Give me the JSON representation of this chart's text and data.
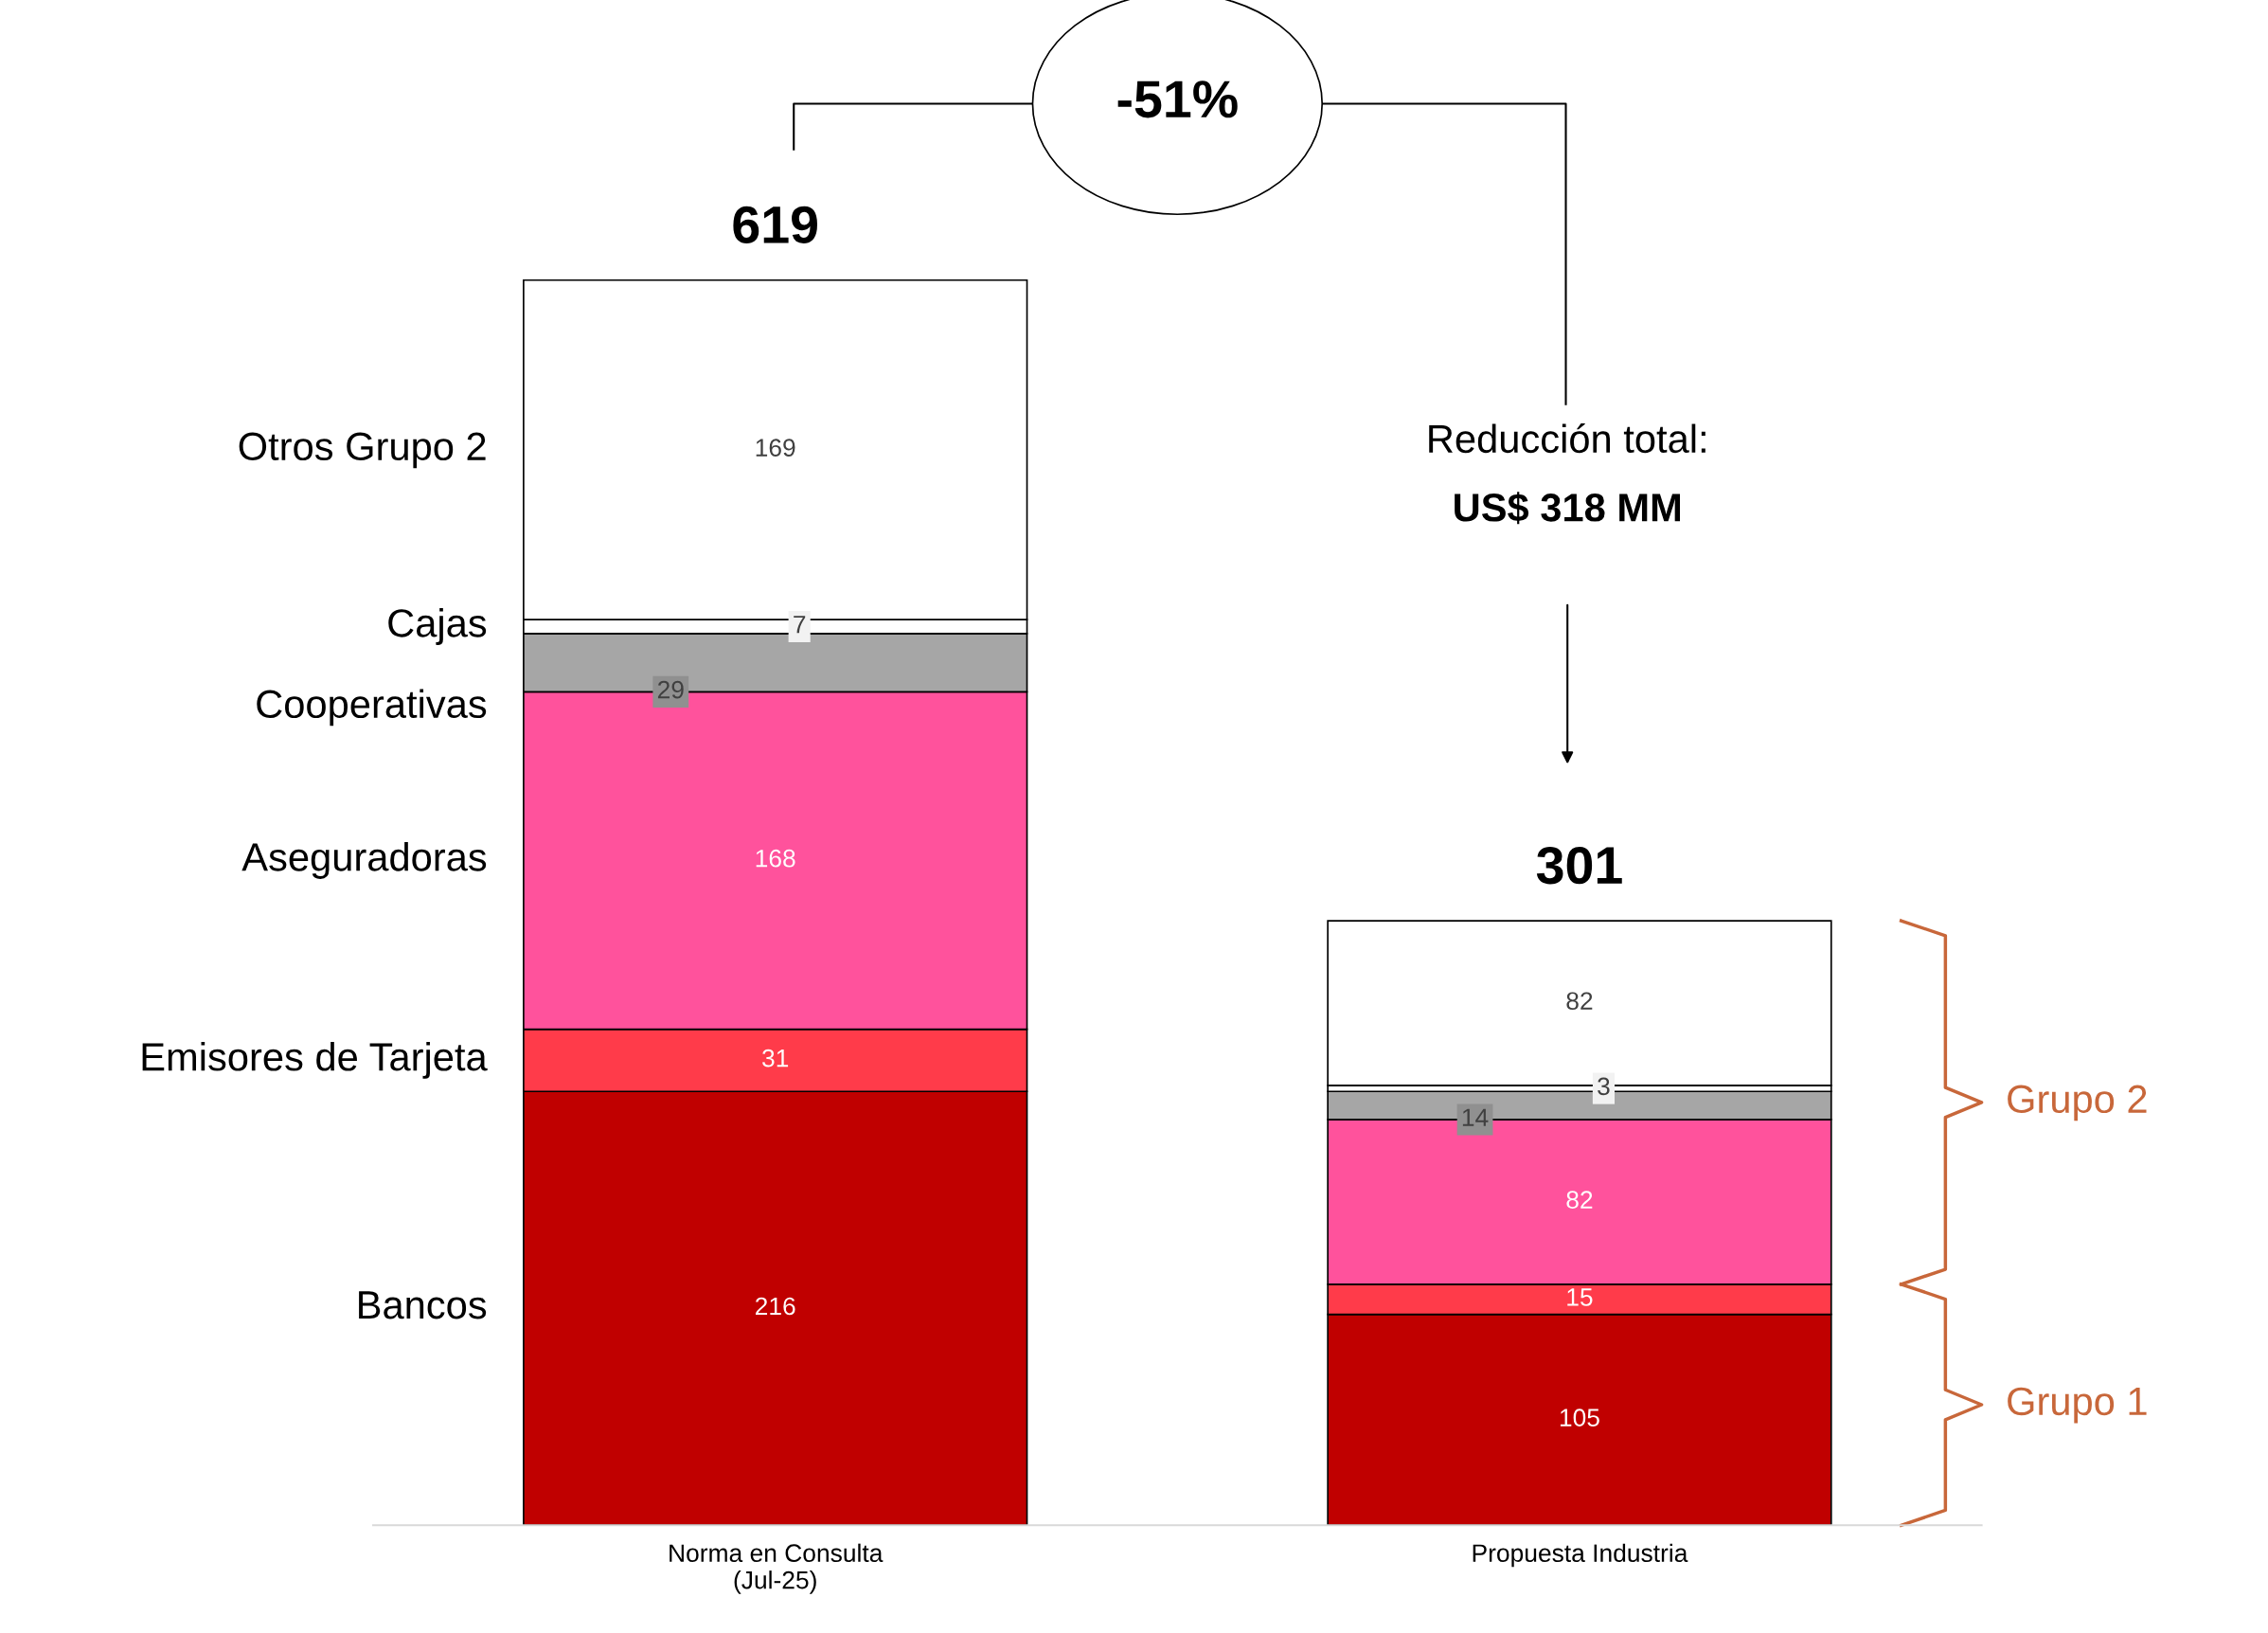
{
  "chart_data": {
    "type": "bar",
    "stacked": true,
    "categories": [
      "Norma en Consulta\n(Jul-25)",
      "Propuesta Industria"
    ],
    "series": [
      {
        "name": "Bancos",
        "color": "#c00000",
        "values": [
          216,
          105
        ]
      },
      {
        "name": "Emisores de Tarjeta",
        "color": "#ff3b4a",
        "values": [
          31,
          15
        ]
      },
      {
        "name": "Aseguradoras",
        "color": "#ff529c",
        "values": [
          168,
          82
        ]
      },
      {
        "name": "Cooperativas",
        "color": "#a6a6a6",
        "values": [
          29,
          14
        ]
      },
      {
        "name": "Cajas",
        "color": "#ffffff",
        "values": [
          7,
          3
        ]
      },
      {
        "name": "Otros Grupo 2",
        "color": "#ffffff",
        "values": [
          169,
          82
        ]
      }
    ],
    "data_labels": true,
    "totals": [
      "619",
      "301"
    ],
    "grid": false,
    "annotations": [
      "-51%",
      "Reducción total:",
      "US$ 318 MM",
      "Grupo 2",
      "Grupo 1"
    ]
  }
}
